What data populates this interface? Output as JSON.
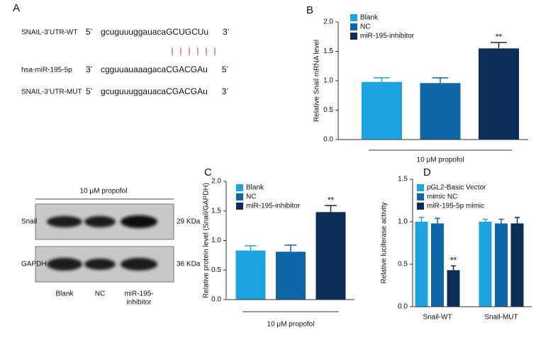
{
  "panel_a": {
    "label": "A",
    "rows": [
      {
        "name": "SNAIL-3’UTR-WT",
        "start": "5’",
        "seq": "gcuguuuggauaca",
        "site": "GCUGCUu",
        "end": "3’"
      },
      {
        "name": "hsa-miR-195-5p",
        "start": "3’",
        "seq": "cgguuauaaagaca",
        "site": "CGACGAu",
        "end": "5’"
      },
      {
        "name": "SNAIL-3’UTR-MUT",
        "start": "5’",
        "seq": "gcuguuuggauaca",
        "site": "CGACGAu",
        "end": "3’"
      }
    ]
  },
  "blot": {
    "title": "10 μM propofol",
    "rows": [
      {
        "name": "Snail",
        "size": "29 KDa"
      },
      {
        "name": "GAPDH",
        "size": "36 KDa"
      }
    ],
    "lanes": [
      [
        "Blank"
      ],
      [
        "NC"
      ],
      [
        "miR-195-",
        "inhibitor"
      ]
    ]
  },
  "chart_data": [
    {
      "type": "bar",
      "panel": "B",
      "ylabel": "Relative Snail mRNA level",
      "categories": [
        "10 μM propofol"
      ],
      "series": [
        {
          "name": "Blank",
          "color": "#1fa3e0",
          "values": [
            0.98
          ],
          "errors": [
            0.07
          ]
        },
        {
          "name": "NC",
          "color": "#0f66a6",
          "values": [
            0.96
          ],
          "errors": [
            0.09
          ]
        },
        {
          "name": "miR-195-inhibitor",
          "color": "#0c2d55",
          "values": [
            1.55
          ],
          "errors": [
            0.1
          ],
          "annotations": [
            "**"
          ]
        }
      ],
      "ylim": [
        0,
        2
      ],
      "yticks": [
        {
          "value": 0,
          "label": "0.0"
        },
        {
          "value": 0.5,
          "label": "0.5"
        },
        {
          "value": 1,
          "label": "1.0"
        },
        {
          "value": 1.5,
          "label": "1.5"
        },
        {
          "value": 2,
          "label": "2.0"
        }
      ]
    },
    {
      "type": "bar",
      "panel": "C",
      "ylabel": "Relative protein level (Snail/GAPDH)",
      "categories": [
        "10 μM propofol"
      ],
      "series": [
        {
          "name": "Blank",
          "color": "#1fa3e0",
          "values": [
            0.83
          ],
          "errors": [
            0.08
          ]
        },
        {
          "name": "NC",
          "color": "#0f66a6",
          "values": [
            0.81
          ],
          "errors": [
            0.11
          ]
        },
        {
          "name": "miR-195-inhibitor",
          "color": "#0c2d55",
          "values": [
            1.48
          ],
          "errors": [
            0.11
          ],
          "annotations": [
            "**"
          ]
        }
      ],
      "ylim": [
        0,
        2
      ],
      "yticks": [
        {
          "value": 0,
          "label": "0.0"
        },
        {
          "value": 0.5,
          "label": "0.5"
        },
        {
          "value": 1,
          "label": "1.0"
        },
        {
          "value": 1.5,
          "label": "1.5"
        },
        {
          "value": 2,
          "label": "2.0"
        }
      ]
    },
    {
      "type": "bar",
      "panel": "D",
      "ylabel": "Relative luciferase activity",
      "categories": [
        "Snail-WT",
        "Snail-MUT"
      ],
      "series": [
        {
          "name": "pGL2-Basic Vector",
          "color": "#1fa3e0",
          "values": [
            1.0,
            1.0
          ],
          "errors": [
            0.05,
            0.03
          ]
        },
        {
          "name": "mimic NC",
          "color": "#0f66a6",
          "values": [
            0.98,
            0.98
          ],
          "errors": [
            0.06,
            0.05
          ]
        },
        {
          "name": "miR-195-5p mimic",
          "color": "#0c2d55",
          "values": [
            0.43,
            0.98
          ],
          "errors": [
            0.05,
            0.07
          ],
          "annotations": [
            "**",
            null
          ]
        }
      ],
      "ylim": [
        0,
        1.5
      ],
      "yticks": [
        {
          "value": 0,
          "label": "0.0"
        },
        {
          "value": 0.5,
          "label": "0.5"
        },
        {
          "value": 1,
          "label": "1.0"
        },
        {
          "value": 1.5,
          "label": "1.5"
        }
      ]
    }
  ]
}
